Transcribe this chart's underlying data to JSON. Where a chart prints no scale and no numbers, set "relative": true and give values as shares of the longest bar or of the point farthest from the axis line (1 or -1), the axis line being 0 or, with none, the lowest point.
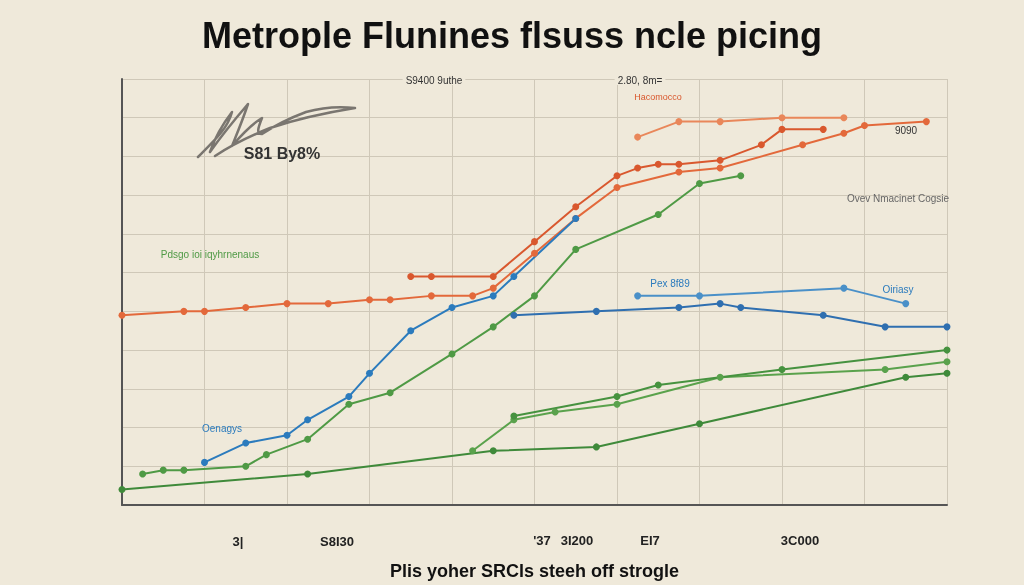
{
  "chart_data": {
    "type": "line",
    "relative": true,
    "title": "Metrople Flunines flsuss ncle picing",
    "xlabel": "Plis yoher SRCls steeh off strogle",
    "annotations": [
      "S9400 9uthe",
      "2.80, 8m=",
      "Hacomocco",
      "S81 By8%",
      "Pdsgo ioi iqyhrnenaus",
      "Ovev Nmacinet Cogsie",
      "Pex 8f89",
      "Oiriasy",
      "Oenagys",
      "9090",
      "3|",
      "S8I30",
      "'37",
      "3I200",
      "EI7",
      "3C000"
    ],
    "categories": [
      null,
      null,
      null,
      null,
      null,
      null,
      null,
      null,
      null,
      null,
      null,
      null,
      null,
      null,
      null,
      null,
      null,
      null,
      null,
      null,
      null,
      null,
      null,
      null,
      null,
      null,
      null,
      null,
      null,
      null,
      null,
      null,
      null,
      null,
      null,
      null,
      null,
      null,
      null,
      null,
      null
    ],
    "series": [
      {
        "color": "#e3693b",
        "values": [
          0.49,
          null,
          null,
          0.5,
          0.5,
          null,
          0.51,
          null,
          0.52,
          null,
          0.52,
          null,
          0.53,
          0.53,
          null,
          0.54,
          null,
          0.54,
          0.56,
          null,
          0.65,
          null,
          0.74,
          null,
          0.82,
          null,
          null,
          0.86,
          null,
          0.87,
          null,
          null,
          null,
          0.93,
          null,
          0.96,
          0.98,
          null,
          null,
          0.99,
          null
        ]
      },
      {
        "color": "#d9582e",
        "values": [
          null,
          null,
          null,
          null,
          null,
          null,
          null,
          null,
          null,
          null,
          null,
          null,
          null,
          null,
          0.59,
          0.59,
          null,
          null,
          0.59,
          null,
          0.68,
          null,
          0.77,
          null,
          0.85,
          0.87,
          0.88,
          0.88,
          null,
          0.89,
          null,
          0.93,
          0.97,
          null,
          0.97,
          null,
          null,
          null,
          null,
          null,
          null
        ]
      },
      {
        "color": "#e9875a",
        "values": [
          null,
          null,
          null,
          null,
          null,
          null,
          null,
          null,
          null,
          null,
          null,
          null,
          null,
          null,
          null,
          null,
          null,
          null,
          null,
          null,
          null,
          null,
          null,
          null,
          null,
          0.95,
          null,
          0.99,
          null,
          0.99,
          null,
          null,
          1,
          null,
          null,
          1,
          null,
          null,
          null,
          null,
          null
        ]
      },
      {
        "color": "#2b7bbd",
        "values": [
          null,
          null,
          null,
          null,
          0.11,
          null,
          0.16,
          null,
          0.18,
          0.22,
          null,
          0.28,
          0.34,
          null,
          0.45,
          null,
          0.51,
          null,
          0.54,
          0.59,
          null,
          null,
          0.74,
          null,
          null,
          null,
          null,
          null,
          null,
          null,
          null,
          null,
          null,
          null,
          null,
          null,
          null,
          null,
          null,
          null,
          null
        ]
      },
      {
        "color": "#2f6fb0",
        "values": [
          null,
          null,
          null,
          null,
          null,
          null,
          null,
          null,
          null,
          null,
          null,
          null,
          null,
          null,
          null,
          null,
          null,
          null,
          null,
          0.49,
          null,
          null,
          null,
          0.5,
          null,
          null,
          null,
          0.51,
          null,
          0.52,
          0.51,
          null,
          null,
          null,
          0.49,
          null,
          null,
          0.46,
          null,
          null,
          0.46
        ]
      },
      {
        "color": "#4a90c8",
        "values": [
          null,
          null,
          null,
          null,
          null,
          null,
          null,
          null,
          null,
          null,
          null,
          null,
          null,
          null,
          null,
          null,
          null,
          null,
          null,
          null,
          null,
          null,
          null,
          null,
          null,
          0.54,
          null,
          null,
          0.54,
          null,
          null,
          null,
          null,
          null,
          null,
          0.56,
          null,
          null,
          0.52,
          null,
          null
        ]
      },
      {
        "color": "#4f9a45",
        "values": [
          null,
          0.08,
          0.09,
          0.09,
          null,
          null,
          0.1,
          0.13,
          null,
          0.17,
          null,
          0.26,
          null,
          0.29,
          null,
          null,
          0.39,
          null,
          0.46,
          null,
          0.54,
          null,
          0.66,
          null,
          null,
          null,
          0.75,
          null,
          0.83,
          null,
          0.85,
          null,
          null,
          null,
          null,
          null,
          null,
          null,
          null,
          null,
          null
        ]
      },
      {
        "color": "#3f8a3a",
        "values": [
          0.04,
          null,
          null,
          null,
          null,
          null,
          null,
          null,
          null,
          0.08,
          null,
          null,
          null,
          null,
          null,
          null,
          null,
          null,
          0.14,
          null,
          null,
          null,
          null,
          0.15,
          null,
          null,
          null,
          null,
          0.21,
          null,
          null,
          null,
          null,
          null,
          null,
          null,
          null,
          null,
          0.33,
          null,
          0.34
        ]
      },
      {
        "color": "#5aa24c",
        "values": [
          null,
          null,
          null,
          null,
          null,
          null,
          null,
          null,
          null,
          null,
          null,
          null,
          null,
          null,
          null,
          null,
          null,
          0.14,
          null,
          0.22,
          null,
          0.24,
          null,
          null,
          0.26,
          null,
          null,
          null,
          null,
          0.33,
          null,
          null,
          null,
          null,
          null,
          null,
          null,
          0.35,
          null,
          null,
          0.37
        ]
      },
      {
        "color": "#46923f",
        "values": [
          null,
          null,
          null,
          null,
          null,
          null,
          null,
          null,
          null,
          null,
          null,
          null,
          null,
          null,
          null,
          null,
          null,
          null,
          null,
          0.23,
          null,
          null,
          null,
          null,
          0.28,
          null,
          0.31,
          null,
          null,
          null,
          null,
          null,
          0.35,
          null,
          null,
          null,
          null,
          null,
          null,
          null,
          0.4
        ]
      }
    ],
    "grid": true,
    "marker": "circle",
    "line_style": "solid"
  }
}
